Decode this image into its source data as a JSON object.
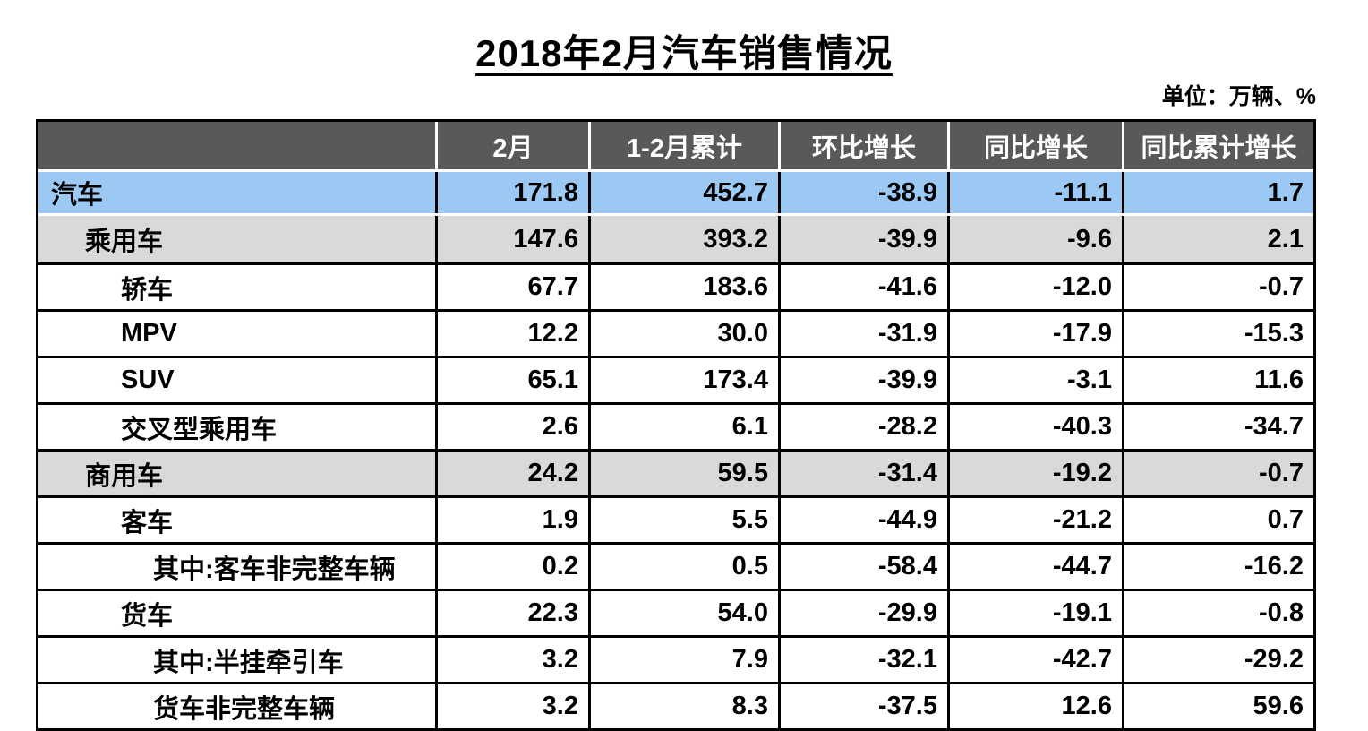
{
  "title": "2018年2月汽车销售情况",
  "unit_note": "单位：万辆、%",
  "colors": {
    "header_bg": "#595959",
    "header_text": "#ffffff",
    "highlight_row_bg": "#9cc9f3",
    "subtotal_row_bg": "#d9d9d9",
    "border": "#000000",
    "text": "#000000"
  },
  "chart_data": {
    "type": "table",
    "title": "2018年2月汽车销售情况",
    "unit": "万辆、%",
    "columns": [
      "",
      "2月",
      "1-2月累计",
      "环比增长",
      "同比增长",
      "同比累计增长"
    ],
    "rows": [
      {
        "label": "汽车",
        "level": 0,
        "emphasis": "highlight",
        "values": [
          "171.8",
          "452.7",
          "-38.9",
          "-11.1",
          "1.7"
        ]
      },
      {
        "label": "乘用车",
        "level": 1,
        "emphasis": "subtotal",
        "values": [
          "147.6",
          "393.2",
          "-39.9",
          "-9.6",
          "2.1"
        ]
      },
      {
        "label": "轿车",
        "level": 2,
        "emphasis": "none",
        "values": [
          "67.7",
          "183.6",
          "-41.6",
          "-12.0",
          "-0.7"
        ]
      },
      {
        "label": "MPV",
        "level": 2,
        "emphasis": "none",
        "values": [
          "12.2",
          "30.0",
          "-31.9",
          "-17.9",
          "-15.3"
        ]
      },
      {
        "label": "SUV",
        "level": 2,
        "emphasis": "none",
        "values": [
          "65.1",
          "173.4",
          "-39.9",
          "-3.1",
          "11.6"
        ]
      },
      {
        "label": "交叉型乘用车",
        "level": 2,
        "emphasis": "none",
        "values": [
          "2.6",
          "6.1",
          "-28.2",
          "-40.3",
          "-34.7"
        ]
      },
      {
        "label": "商用车",
        "level": 1,
        "emphasis": "subtotal",
        "values": [
          "24.2",
          "59.5",
          "-31.4",
          "-19.2",
          "-0.7"
        ]
      },
      {
        "label": "客车",
        "level": 2,
        "emphasis": "none",
        "values": [
          "1.9",
          "5.5",
          "-44.9",
          "-21.2",
          "0.7"
        ]
      },
      {
        "label": "其中:客车非完整车辆",
        "level": 3,
        "emphasis": "none",
        "values": [
          "0.2",
          "0.5",
          "-58.4",
          "-44.7",
          "-16.2"
        ]
      },
      {
        "label": "货车",
        "level": 2,
        "emphasis": "none",
        "values": [
          "22.3",
          "54.0",
          "-29.9",
          "-19.1",
          "-0.8"
        ]
      },
      {
        "label": "其中:半挂牵引车",
        "level": 3,
        "emphasis": "none",
        "values": [
          "3.2",
          "7.9",
          "-32.1",
          "-42.7",
          "-29.2"
        ]
      },
      {
        "label": "货车非完整车辆",
        "level": 3,
        "emphasis": "none",
        "values": [
          "3.2",
          "8.3",
          "-37.5",
          "12.6",
          "59.6"
        ]
      }
    ]
  }
}
